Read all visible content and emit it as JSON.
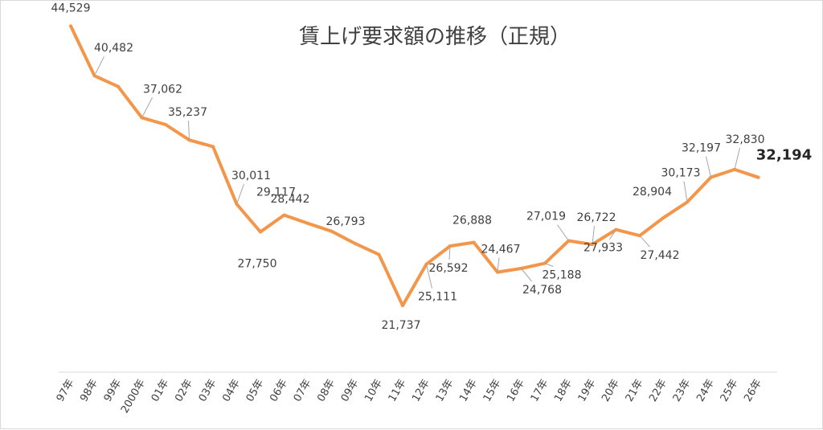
{
  "chart_data": {
    "type": "line",
    "title": "賃上げ要求額の推移（正規）",
    "categories": [
      "97年",
      "98年",
      "99年",
      "2000年",
      "01年",
      "02年",
      "03年",
      "04年",
      "05年",
      "06年",
      "07年",
      "08年",
      "09年",
      "10年",
      "11年",
      "12年",
      "13年",
      "14年",
      "15年",
      "16年",
      "17年",
      "18年",
      "19年",
      "20年",
      "21年",
      "22年",
      "23年",
      "24年",
      "25年",
      "26年"
    ],
    "series": [
      {
        "values": [
          44529,
          40482,
          39600,
          37062,
          36500,
          35237,
          34700,
          30011,
          27750,
          29117,
          28442,
          27800,
          26793,
          25900,
          21737,
          25111,
          26592,
          26888,
          24467,
          24768,
          25188,
          27019,
          26722,
          27933,
          27442,
          28904,
          30173,
          32197,
          32830,
          32194
        ],
        "labels": [
          "44,529",
          "40,482",
          "",
          "37,062",
          "",
          "35,237",
          "",
          "30,011",
          "27,750",
          "29,117",
          "28,442",
          "",
          "26,793",
          "",
          "21,737",
          "25,111",
          "26,592",
          "26,888",
          "24,467",
          "24,768",
          "25,188",
          "27,019",
          "26,722",
          "27,933",
          "27,442",
          "28,904",
          "30,173",
          "32,197",
          "32,830",
          "32,194"
        ],
        "color": "#F4964A"
      }
    ],
    "ylim": [
      15000,
      46000
    ],
    "grid": false,
    "legend": "none",
    "axis_color": "#d9d9d9"
  }
}
